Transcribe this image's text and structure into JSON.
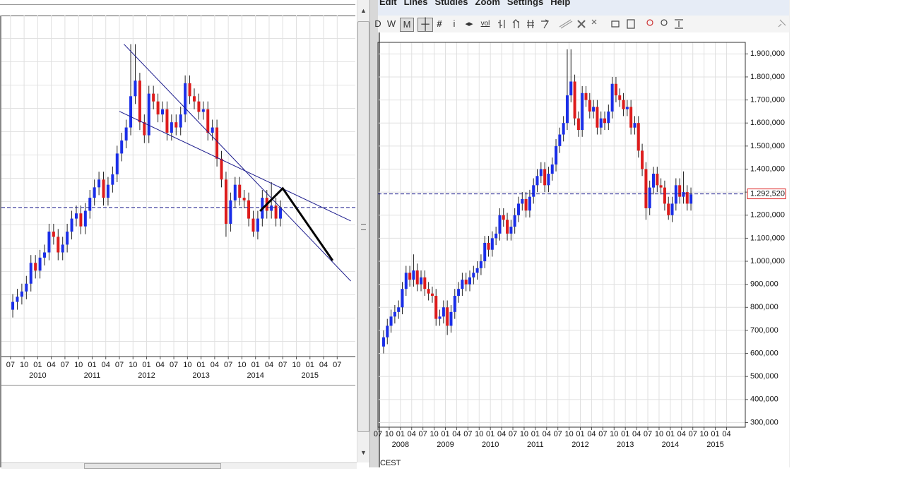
{
  "menu": [
    "Edit",
    "Lines",
    "Studies",
    "Zoom",
    "Settings",
    "Help"
  ],
  "toolbar": {
    "periods": [
      "D",
      "W",
      "M"
    ],
    "info": "i",
    "volume": "vol"
  },
  "timezone": "CEST",
  "chart_data": [
    {
      "type": "candlestick",
      "up_color": "#1a2ee8",
      "down_color": "#dd1c1c",
      "grid": true,
      "xlim": [
        "2009-05",
        "2015-11"
      ],
      "ylim": [
        0.72,
        2.03
      ],
      "xticks": [
        {
          "value": "2009-07",
          "label": "07"
        },
        {
          "value": "2009-10",
          "label": "10"
        },
        {
          "value": "2010-01",
          "label": "01"
        },
        {
          "value": "2010-04",
          "label": "04"
        },
        {
          "value": "2010-07",
          "label": "07"
        },
        {
          "value": "2010-10",
          "label": "10"
        },
        {
          "value": "2011-01",
          "label": "01"
        },
        {
          "value": "2011-04",
          "label": "04"
        },
        {
          "value": "2011-07",
          "label": "07"
        },
        {
          "value": "2011-10",
          "label": "10"
        },
        {
          "value": "2012-01",
          "label": "01"
        },
        {
          "value": "2012-04",
          "label": "04"
        },
        {
          "value": "2012-07",
          "label": "07"
        },
        {
          "value": "2012-10",
          "label": "10"
        },
        {
          "value": "2013-01",
          "label": "01"
        },
        {
          "value": "2013-04",
          "label": "04"
        },
        {
          "value": "2013-07",
          "label": "07"
        },
        {
          "value": "2013-10",
          "label": "10"
        },
        {
          "value": "2014-01",
          "label": "01"
        },
        {
          "value": "2014-04",
          "label": "04"
        },
        {
          "value": "2014-07",
          "label": "07"
        },
        {
          "value": "2014-10",
          "label": "10"
        },
        {
          "value": "2015-01",
          "label": "01"
        },
        {
          "value": "2015-04",
          "label": "04"
        },
        {
          "value": "2015-07",
          "label": "07"
        }
      ],
      "years": [
        {
          "value": "2010-01",
          "label": "2010"
        },
        {
          "value": "2011-01",
          "label": "2011"
        },
        {
          "value": "2012-01",
          "label": "2012"
        },
        {
          "value": "2013-01",
          "label": "2013"
        },
        {
          "value": "2014-01",
          "label": "2014"
        },
        {
          "value": "2015-01",
          "label": "2015"
        }
      ],
      "last_price": {
        "value": 1.29252,
        "color": "#1a1a8c"
      },
      "x": [
        "2009-07",
        "2009-08",
        "2009-09",
        "2009-10",
        "2009-11",
        "2009-12",
        "2010-01",
        "2010-02",
        "2010-03",
        "2010-04",
        "2010-05",
        "2010-06",
        "2010-07",
        "2010-08",
        "2010-09",
        "2010-10",
        "2010-11",
        "2010-12",
        "2011-01",
        "2011-02",
        "2011-03",
        "2011-04",
        "2011-05",
        "2011-06",
        "2011-07",
        "2011-08",
        "2011-09",
        "2011-10",
        "2011-11",
        "2011-12",
        "2012-01",
        "2012-02",
        "2012-03",
        "2012-04",
        "2012-05",
        "2012-06",
        "2012-07",
        "2012-08",
        "2012-09",
        "2012-10",
        "2012-11",
        "2012-12",
        "2013-01",
        "2013-02",
        "2013-03",
        "2013-04",
        "2013-05",
        "2013-06",
        "2013-07",
        "2013-08",
        "2013-09",
        "2013-10",
        "2013-11",
        "2013-12",
        "2014-01",
        "2014-02",
        "2014-03",
        "2014-04",
        "2014-05",
        "2014-06"
      ],
      "open": [
        0.9,
        0.93,
        0.95,
        0.97,
        1.0,
        1.08,
        1.05,
        1.1,
        1.12,
        1.2,
        1.18,
        1.12,
        1.15,
        1.2,
        1.25,
        1.27,
        1.22,
        1.28,
        1.33,
        1.37,
        1.4,
        1.33,
        1.38,
        1.42,
        1.5,
        1.55,
        1.6,
        1.72,
        1.78,
        1.62,
        1.57,
        1.73,
        1.7,
        1.65,
        1.67,
        1.58,
        1.62,
        1.6,
        1.65,
        1.77,
        1.72,
        1.7,
        1.66,
        1.67,
        1.58,
        1.6,
        1.48,
        1.4,
        1.23,
        1.32,
        1.38,
        1.33,
        1.32,
        1.25,
        1.2,
        1.25,
        1.33,
        1.28,
        1.3,
        1.25
      ],
      "high": [
        0.96,
        0.98,
        1.0,
        1.03,
        1.11,
        1.11,
        1.13,
        1.15,
        1.23,
        1.23,
        1.21,
        1.18,
        1.23,
        1.28,
        1.3,
        1.3,
        1.31,
        1.36,
        1.4,
        1.43,
        1.43,
        1.41,
        1.45,
        1.53,
        1.58,
        1.63,
        1.92,
        1.92,
        1.81,
        1.65,
        1.76,
        1.76,
        1.73,
        1.7,
        1.7,
        1.65,
        1.65,
        1.68,
        1.8,
        1.8,
        1.75,
        1.73,
        1.7,
        1.7,
        1.63,
        1.63,
        1.51,
        1.43,
        1.35,
        1.41,
        1.41,
        1.36,
        1.35,
        1.28,
        1.28,
        1.36,
        1.36,
        1.39,
        1.33,
        1.32
      ],
      "low": [
        0.87,
        0.9,
        0.92,
        0.94,
        0.97,
        1.02,
        1.02,
        1.07,
        1.09,
        1.15,
        1.09,
        1.09,
        1.12,
        1.17,
        1.22,
        1.19,
        1.19,
        1.25,
        1.3,
        1.34,
        1.3,
        1.3,
        1.35,
        1.39,
        1.47,
        1.52,
        1.57,
        1.69,
        1.59,
        1.54,
        1.54,
        1.67,
        1.62,
        1.62,
        1.55,
        1.55,
        1.57,
        1.57,
        1.62,
        1.69,
        1.67,
        1.63,
        1.63,
        1.55,
        1.55,
        1.45,
        1.37,
        1.18,
        1.2,
        1.29,
        1.3,
        1.29,
        1.22,
        1.18,
        1.17,
        1.22,
        1.25,
        1.25,
        1.22,
        1.22
      ],
      "close": [
        0.93,
        0.95,
        0.97,
        1.0,
        1.08,
        1.05,
        1.1,
        1.12,
        1.2,
        1.18,
        1.12,
        1.15,
        1.2,
        1.25,
        1.27,
        1.22,
        1.28,
        1.33,
        1.37,
        1.4,
        1.33,
        1.38,
        1.42,
        1.5,
        1.55,
        1.6,
        1.72,
        1.78,
        1.62,
        1.57,
        1.73,
        1.7,
        1.65,
        1.67,
        1.58,
        1.62,
        1.6,
        1.65,
        1.77,
        1.72,
        1.7,
        1.66,
        1.67,
        1.58,
        1.6,
        1.48,
        1.4,
        1.23,
        1.32,
        1.38,
        1.33,
        1.32,
        1.25,
        1.2,
        1.25,
        1.33,
        1.28,
        1.3,
        1.25,
        1.29
      ],
      "drawings": [
        {
          "color": "#1a1a8c",
          "width": 1,
          "points": [
            {
              "x": "2011-08",
              "y": 1.92
            },
            {
              "x": "2015-10",
              "y": 1.01
            }
          ]
        },
        {
          "color": "#1a1a8c",
          "width": 1,
          "points": [
            {
              "x": "2011-07",
              "y": 1.662
            },
            {
              "x": "2015-10",
              "y": 1.241
            }
          ]
        },
        {
          "color": "#000000",
          "width": 3,
          "points": [
            {
              "x": "2014-02",
              "y": 1.279
            },
            {
              "x": "2014-07",
              "y": 1.366
            },
            {
              "x": "2015-06",
              "y": 1.089
            }
          ]
        }
      ]
    },
    {
      "type": "candlestick",
      "up_color": "#1a2ee8",
      "down_color": "#dd1c1c",
      "grid": true,
      "xlim": [
        "2007-07",
        "2015-09"
      ],
      "ylim": [
        0.28,
        1.95
      ],
      "xticks": [
        {
          "value": "2007-07",
          "label": "07"
        },
        {
          "value": "2007-10",
          "label": "10"
        },
        {
          "value": "2008-01",
          "label": "01"
        },
        {
          "value": "2008-04",
          "label": "04"
        },
        {
          "value": "2008-07",
          "label": "07"
        },
        {
          "value": "2008-10",
          "label": "10"
        },
        {
          "value": "2009-01",
          "label": "01"
        },
        {
          "value": "2009-04",
          "label": "04"
        },
        {
          "value": "2009-07",
          "label": "07"
        },
        {
          "value": "2009-10",
          "label": "10"
        },
        {
          "value": "2010-01",
          "label": "01"
        },
        {
          "value": "2010-04",
          "label": "04"
        },
        {
          "value": "2010-07",
          "label": "07"
        },
        {
          "value": "2010-10",
          "label": "10"
        },
        {
          "value": "2011-01",
          "label": "01"
        },
        {
          "value": "2011-04",
          "label": "04"
        },
        {
          "value": "2011-07",
          "label": "07"
        },
        {
          "value": "2011-10",
          "label": "10"
        },
        {
          "value": "2012-01",
          "label": "01"
        },
        {
          "value": "2012-04",
          "label": "04"
        },
        {
          "value": "2012-07",
          "label": "07"
        },
        {
          "value": "2012-10",
          "label": "10"
        },
        {
          "value": "2013-01",
          "label": "01"
        },
        {
          "value": "2013-04",
          "label": "04"
        },
        {
          "value": "2013-07",
          "label": "07"
        },
        {
          "value": "2013-10",
          "label": "10"
        },
        {
          "value": "2014-01",
          "label": "01"
        },
        {
          "value": "2014-04",
          "label": "04"
        },
        {
          "value": "2014-07",
          "label": "07"
        },
        {
          "value": "2014-10",
          "label": "10"
        },
        {
          "value": "2015-01",
          "label": "01"
        },
        {
          "value": "2015-04",
          "label": "04"
        }
      ],
      "years": [
        {
          "value": "2008-01",
          "label": "2008"
        },
        {
          "value": "2009-01",
          "label": "2009"
        },
        {
          "value": "2010-01",
          "label": "2010"
        },
        {
          "value": "2011-01",
          "label": "2011"
        },
        {
          "value": "2012-01",
          "label": "2012"
        },
        {
          "value": "2013-01",
          "label": "2013"
        },
        {
          "value": "2014-01",
          "label": "2014"
        },
        {
          "value": "2015-01",
          "label": "2015"
        }
      ],
      "yticks": [
        {
          "value": 0.3,
          "label": "300,000"
        },
        {
          "value": 0.4,
          "label": "400,000"
        },
        {
          "value": 0.5,
          "label": "500,000"
        },
        {
          "value": 0.6,
          "label": "600,000"
        },
        {
          "value": 0.7,
          "label": "700,000"
        },
        {
          "value": 0.8,
          "label": "800,000"
        },
        {
          "value": 0.9,
          "label": "900,000"
        },
        {
          "value": 1.0,
          "label": "1.000,000"
        },
        {
          "value": 1.1,
          "label": "1.100,000"
        },
        {
          "value": 1.2,
          "label": "1.200,000"
        },
        {
          "value": 1.3,
          "label": "1.300,000"
        },
        {
          "value": 1.4,
          "label": "1.400,000"
        },
        {
          "value": 1.5,
          "label": "1.500,000"
        },
        {
          "value": 1.6,
          "label": "1.600,000"
        },
        {
          "value": 1.7,
          "label": "1.700,000"
        },
        {
          "value": 1.8,
          "label": "1.800,000"
        },
        {
          "value": 1.9,
          "label": "1.900,000"
        }
      ],
      "last_price": {
        "value": 1.29252,
        "label": "1.292,520",
        "color": "#1a1a8c"
      },
      "x": [
        "2007-08",
        "2007-09",
        "2007-10",
        "2007-11",
        "2007-12",
        "2008-01",
        "2008-02",
        "2008-03",
        "2008-04",
        "2008-05",
        "2008-06",
        "2008-07",
        "2008-08",
        "2008-09",
        "2008-10",
        "2008-11",
        "2008-12",
        "2009-01",
        "2009-02",
        "2009-03",
        "2009-04",
        "2009-05",
        "2009-06",
        "2009-07",
        "2009-08",
        "2009-09",
        "2009-10",
        "2009-11",
        "2009-12",
        "2010-01",
        "2010-02",
        "2010-03",
        "2010-04",
        "2010-05",
        "2010-06",
        "2010-07",
        "2010-08",
        "2010-09",
        "2010-10",
        "2010-11",
        "2010-12",
        "2011-01",
        "2011-02",
        "2011-03",
        "2011-04",
        "2011-05",
        "2011-06",
        "2011-07",
        "2011-08",
        "2011-09",
        "2011-10",
        "2011-11",
        "2011-12",
        "2012-01",
        "2012-02",
        "2012-03",
        "2012-04",
        "2012-05",
        "2012-06",
        "2012-07",
        "2012-08",
        "2012-09",
        "2012-10",
        "2012-11",
        "2012-12",
        "2013-01",
        "2013-02",
        "2013-03",
        "2013-04",
        "2013-05",
        "2013-06",
        "2013-07",
        "2013-08",
        "2013-09",
        "2013-10",
        "2013-11",
        "2013-12",
        "2014-01",
        "2014-02",
        "2014-03",
        "2014-04",
        "2014-05",
        "2014-06"
      ],
      "open": [
        0.63,
        0.67,
        0.72,
        0.76,
        0.78,
        0.8,
        0.88,
        0.95,
        0.92,
        0.96,
        0.9,
        0.93,
        0.88,
        0.86,
        0.85,
        0.75,
        0.76,
        0.8,
        0.72,
        0.78,
        0.85,
        0.88,
        0.92,
        0.9,
        0.93,
        0.95,
        0.97,
        1.0,
        1.08,
        1.05,
        1.1,
        1.12,
        1.2,
        1.18,
        1.12,
        1.15,
        1.2,
        1.25,
        1.27,
        1.22,
        1.28,
        1.33,
        1.37,
        1.4,
        1.33,
        1.38,
        1.42,
        1.5,
        1.55,
        1.6,
        1.72,
        1.78,
        1.62,
        1.57,
        1.73,
        1.7,
        1.65,
        1.67,
        1.58,
        1.62,
        1.6,
        1.65,
        1.77,
        1.72,
        1.7,
        1.66,
        1.67,
        1.58,
        1.6,
        1.48,
        1.4,
        1.23,
        1.32,
        1.38,
        1.33,
        1.32,
        1.25,
        1.2,
        1.25,
        1.33,
        1.28,
        1.3,
        1.25
      ],
      "high": [
        0.7,
        0.75,
        0.79,
        0.81,
        0.83,
        0.91,
        0.98,
        0.98,
        1.03,
        0.99,
        0.96,
        0.96,
        0.91,
        0.89,
        0.88,
        0.79,
        0.83,
        0.83,
        0.81,
        0.88,
        0.91,
        0.95,
        0.95,
        0.96,
        0.98,
        1.0,
        1.03,
        1.11,
        1.11,
        1.13,
        1.15,
        1.23,
        1.23,
        1.21,
        1.18,
        1.23,
        1.28,
        1.3,
        1.3,
        1.31,
        1.36,
        1.4,
        1.43,
        1.43,
        1.41,
        1.45,
        1.53,
        1.58,
        1.63,
        1.92,
        1.92,
        1.81,
        1.65,
        1.76,
        1.76,
        1.73,
        1.7,
        1.7,
        1.65,
        1.65,
        1.68,
        1.8,
        1.8,
        1.75,
        1.73,
        1.7,
        1.7,
        1.63,
        1.63,
        1.51,
        1.43,
        1.35,
        1.41,
        1.41,
        1.36,
        1.35,
        1.28,
        1.28,
        1.36,
        1.36,
        1.39,
        1.33,
        1.32
      ],
      "low": [
        0.6,
        0.64,
        0.69,
        0.73,
        0.75,
        0.77,
        0.85,
        0.89,
        0.89,
        0.87,
        0.87,
        0.85,
        0.83,
        0.82,
        0.72,
        0.72,
        0.73,
        0.68,
        0.69,
        0.75,
        0.82,
        0.85,
        0.87,
        0.87,
        0.9,
        0.92,
        0.94,
        0.97,
        1.02,
        1.02,
        1.07,
        1.09,
        1.15,
        1.09,
        1.09,
        1.12,
        1.17,
        1.22,
        1.19,
        1.19,
        1.25,
        1.3,
        1.34,
        1.3,
        1.3,
        1.35,
        1.39,
        1.47,
        1.52,
        1.57,
        1.69,
        1.59,
        1.54,
        1.54,
        1.67,
        1.62,
        1.62,
        1.55,
        1.55,
        1.57,
        1.57,
        1.62,
        1.69,
        1.67,
        1.63,
        1.63,
        1.55,
        1.55,
        1.45,
        1.37,
        1.18,
        1.2,
        1.29,
        1.3,
        1.29,
        1.22,
        1.18,
        1.17,
        1.22,
        1.25,
        1.25,
        1.22,
        1.22
      ],
      "close": [
        0.67,
        0.72,
        0.76,
        0.78,
        0.8,
        0.88,
        0.95,
        0.92,
        0.96,
        0.9,
        0.93,
        0.88,
        0.86,
        0.85,
        0.75,
        0.76,
        0.8,
        0.72,
        0.78,
        0.85,
        0.88,
        0.92,
        0.9,
        0.93,
        0.95,
        0.97,
        1.0,
        1.08,
        1.05,
        1.1,
        1.12,
        1.2,
        1.18,
        1.12,
        1.15,
        1.2,
        1.25,
        1.27,
        1.22,
        1.28,
        1.33,
        1.37,
        1.4,
        1.33,
        1.38,
        1.42,
        1.5,
        1.55,
        1.6,
        1.72,
        1.78,
        1.62,
        1.57,
        1.73,
        1.7,
        1.65,
        1.67,
        1.58,
        1.62,
        1.6,
        1.65,
        1.77,
        1.72,
        1.7,
        1.66,
        1.67,
        1.58,
        1.6,
        1.48,
        1.4,
        1.23,
        1.32,
        1.38,
        1.33,
        1.32,
        1.25,
        1.2,
        1.25,
        1.33,
        1.28,
        1.3,
        1.25,
        1.29
      ]
    }
  ]
}
